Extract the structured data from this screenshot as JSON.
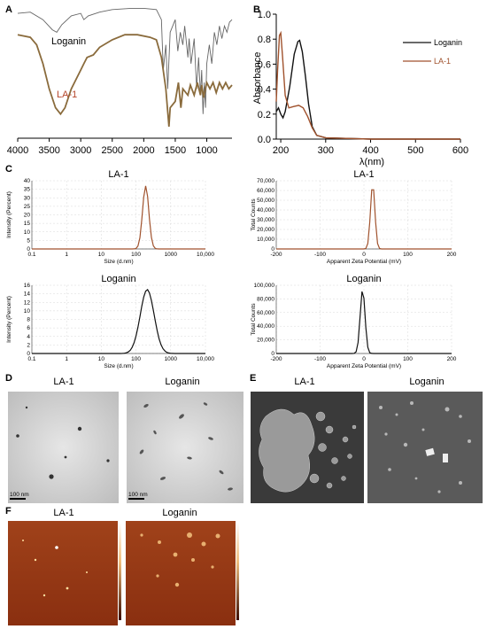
{
  "panels": {
    "A": "A",
    "B": "B",
    "C": "C",
    "D": "D",
    "E": "E",
    "F": "F"
  },
  "colors": {
    "loganin": "#111111",
    "la1": "#a0522d",
    "la1_ir": "#8a6b3c",
    "ir_loganin": "#666666"
  },
  "chart_data": [
    {
      "id": "A",
      "type": "line",
      "xticks": [
        "4000",
        "3500",
        "3000",
        "2500",
        "2000",
        "1500",
        "1000"
      ],
      "xlim": [
        4000,
        600
      ],
      "series": [
        {
          "name": "Loganin",
          "points": [
            [
              4000,
              0.95
            ],
            [
              3800,
              0.96
            ],
            [
              3600,
              0.9
            ],
            [
              3450,
              0.82
            ],
            [
              3380,
              0.8
            ],
            [
              3300,
              0.86
            ],
            [
              3150,
              0.93
            ],
            [
              3000,
              0.95
            ],
            [
              2950,
              0.9
            ],
            [
              2880,
              0.93
            ],
            [
              2700,
              0.96
            ],
            [
              2500,
              0.98
            ],
            [
              2200,
              0.99
            ],
            [
              2000,
              0.99
            ],
            [
              1800,
              0.98
            ],
            [
              1720,
              0.9
            ],
            [
              1690,
              0.5
            ],
            [
              1650,
              0.7
            ],
            [
              1620,
              0.35
            ],
            [
              1580,
              0.8
            ],
            [
              1500,
              0.9
            ],
            [
              1460,
              0.65
            ],
            [
              1420,
              0.8
            ],
            [
              1380,
              0.7
            ],
            [
              1350,
              0.85
            ],
            [
              1300,
              0.6
            ],
            [
              1280,
              0.75
            ],
            [
              1250,
              0.55
            ],
            [
              1200,
              0.75
            ],
            [
              1160,
              0.35
            ],
            [
              1130,
              0.6
            ],
            [
              1100,
              0.3
            ],
            [
              1080,
              0.5
            ],
            [
              1060,
              0.15
            ],
            [
              1040,
              0.4
            ],
            [
              1020,
              0.2
            ],
            [
              1000,
              0.55
            ],
            [
              960,
              0.7
            ],
            [
              920,
              0.55
            ],
            [
              880,
              0.8
            ],
            [
              840,
              0.7
            ],
            [
              800,
              0.85
            ],
            [
              760,
              0.75
            ],
            [
              720,
              0.85
            ],
            [
              680,
              0.8
            ],
            [
              640,
              0.88
            ],
            [
              600,
              0.9
            ]
          ]
        },
        {
          "name": "LA-1",
          "points": [
            [
              4000,
              0.78
            ],
            [
              3800,
              0.76
            ],
            [
              3700,
              0.7
            ],
            [
              3600,
              0.55
            ],
            [
              3500,
              0.35
            ],
            [
              3400,
              0.2
            ],
            [
              3320,
              0.15
            ],
            [
              3250,
              0.2
            ],
            [
              3150,
              0.35
            ],
            [
              3000,
              0.5
            ],
            [
              2950,
              0.55
            ],
            [
              2900,
              0.6
            ],
            [
              2800,
              0.62
            ],
            [
              2700,
              0.68
            ],
            [
              2500,
              0.74
            ],
            [
              2300,
              0.78
            ],
            [
              2100,
              0.78
            ],
            [
              1900,
              0.76
            ],
            [
              1800,
              0.74
            ],
            [
              1720,
              0.6
            ],
            [
              1650,
              0.35
            ],
            [
              1600,
              0.05
            ],
            [
              1580,
              0.2
            ],
            [
              1500,
              0.25
            ],
            [
              1450,
              0.4
            ],
            [
              1410,
              0.2
            ],
            [
              1380,
              0.35
            ],
            [
              1300,
              0.3
            ],
            [
              1260,
              0.38
            ],
            [
              1200,
              0.3
            ],
            [
              1150,
              0.4
            ],
            [
              1100,
              0.3
            ],
            [
              1080,
              0.38
            ],
            [
              1050,
              0.28
            ],
            [
              1000,
              0.4
            ],
            [
              950,
              0.35
            ],
            [
              900,
              0.4
            ],
            [
              850,
              0.32
            ],
            [
              800,
              0.4
            ],
            [
              750,
              0.35
            ],
            [
              700,
              0.4
            ],
            [
              650,
              0.35
            ],
            [
              600,
              0.38
            ]
          ]
        }
      ],
      "labels": [
        "Loganin",
        "LA-1"
      ]
    },
    {
      "id": "B",
      "type": "line",
      "ylabel": "Absorbance",
      "xlabel": "λ(nm)",
      "xlim": [
        190,
        600
      ],
      "ylim": [
        0,
        1.0
      ],
      "xticks": [
        "200",
        "300",
        "400",
        "500",
        "600"
      ],
      "yticks": [
        "0.0",
        "0.2",
        "0.4",
        "0.6",
        "0.8",
        "1.0"
      ],
      "legend": [
        "Loganin",
        "LA-1"
      ],
      "series": [
        {
          "name": "Loganin",
          "points": [
            [
              190,
              0.22
            ],
            [
              195,
              0.25
            ],
            [
              200,
              0.2
            ],
            [
              205,
              0.17
            ],
            [
              210,
              0.22
            ],
            [
              220,
              0.42
            ],
            [
              230,
              0.68
            ],
            [
              238,
              0.78
            ],
            [
              242,
              0.79
            ],
            [
              248,
              0.7
            ],
            [
              255,
              0.5
            ],
            [
              262,
              0.28
            ],
            [
              270,
              0.1
            ],
            [
              280,
              0.03
            ],
            [
              300,
              0.01
            ],
            [
              400,
              0.0
            ],
            [
              600,
              0.0
            ]
          ]
        },
        {
          "name": "LA-1",
          "points": [
            [
              190,
              0.3
            ],
            [
              193,
              0.55
            ],
            [
              197,
              0.83
            ],
            [
              200,
              0.85
            ],
            [
              204,
              0.66
            ],
            [
              210,
              0.35
            ],
            [
              218,
              0.25
            ],
            [
              228,
              0.26
            ],
            [
              240,
              0.27
            ],
            [
              250,
              0.25
            ],
            [
              260,
              0.18
            ],
            [
              270,
              0.09
            ],
            [
              280,
              0.03
            ],
            [
              300,
              0.01
            ],
            [
              400,
              0.0
            ],
            [
              600,
              0.0
            ]
          ]
        }
      ]
    },
    {
      "id": "C1",
      "type": "line",
      "title": "LA-1",
      "ylabel": "Intensity (Percent)",
      "xlabel": "Size (d.nm)",
      "xscale": "log",
      "xlim": [
        0.1,
        10000
      ],
      "ylim": [
        0,
        40
      ],
      "xticks": [
        "0.1",
        "1",
        "10",
        "100",
        "1000",
        "10,000"
      ],
      "yticks": [
        "0",
        "5",
        "10",
        "15",
        "20",
        "25",
        "30",
        "35",
        "40"
      ],
      "peak": {
        "x": 190,
        "y": 37
      }
    },
    {
      "id": "C2",
      "type": "line",
      "title": "LA-1",
      "ylabel": "Total Counts",
      "xlabel": "Apparent Zeta Potential (mV)",
      "xlim": [
        -200,
        200
      ],
      "ylim": [
        0,
        70000
      ],
      "xticks": [
        "-200",
        "-100",
        "0",
        "100",
        "200"
      ],
      "yticks": [
        "0",
        "10,000",
        "20,000",
        "30,000",
        "40,000",
        "50,000",
        "60,000",
        "70,000"
      ],
      "peak": {
        "x": 20,
        "y": 67000
      }
    },
    {
      "id": "C3",
      "type": "line",
      "title": "Loganin",
      "ylabel": "Intensity (Percent)",
      "xlabel": "Size (d.nm)",
      "xscale": "log",
      "xlim": [
        0.1,
        10000
      ],
      "ylim": [
        0,
        16
      ],
      "xticks": [
        "0.1",
        "1",
        "10",
        "100",
        "1000",
        "10,000"
      ],
      "yticks": [
        "0",
        "2",
        "4",
        "6",
        "8",
        "10",
        "12",
        "14",
        "16"
      ],
      "peak": {
        "x": 210,
        "y": 15
      }
    },
    {
      "id": "C4",
      "type": "line",
      "title": "Loganin",
      "ylabel": "Total Counts",
      "xlabel": "Apparent Zeta Potential (mV)",
      "xlim": [
        -200,
        200
      ],
      "ylim": [
        0,
        100000
      ],
      "xticks": [
        "-200",
        "-100",
        "0",
        "100",
        "200"
      ],
      "yticks": [
        "0",
        "20,000",
        "40,000",
        "60,000",
        "80,000",
        "100,000"
      ],
      "peak": {
        "x": -3,
        "y": 94000
      }
    }
  ],
  "images": {
    "D": {
      "left": "LA-1",
      "right": "Loganin",
      "scale": "100 nm"
    },
    "E": {
      "left": "LA-1",
      "right": "Loganin"
    },
    "F": {
      "left": "LA-1",
      "right": "Loganin"
    }
  }
}
